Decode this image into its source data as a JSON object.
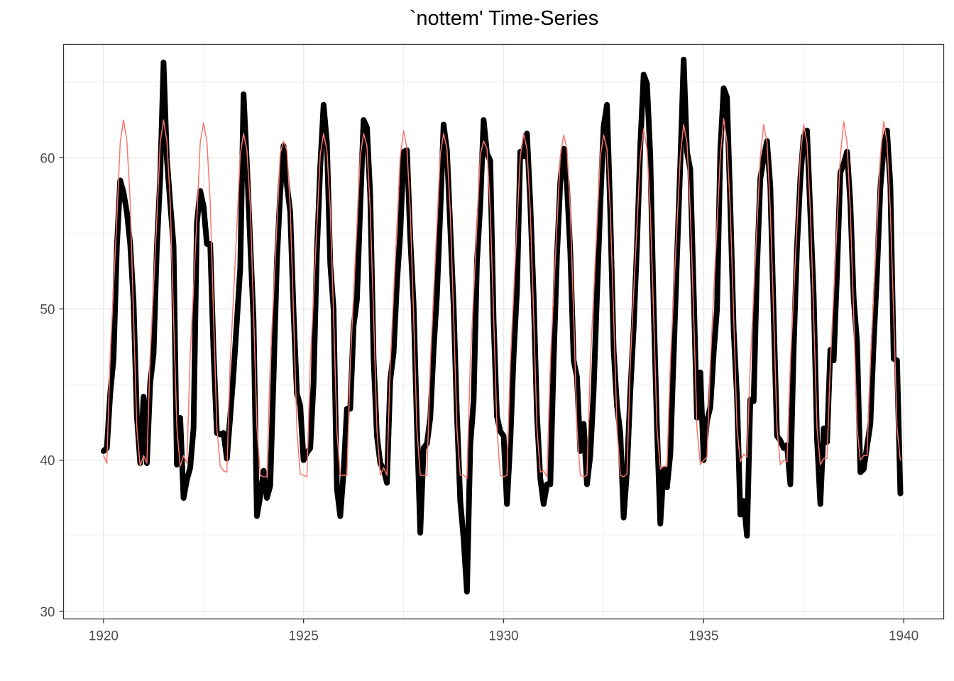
{
  "chart_data": {
    "type": "line",
    "title": "`nottem' Time-Series",
    "xlabel": "",
    "ylabel": "",
    "xlim": [
      1919,
      1941
    ],
    "ylim": [
      29.5,
      67.5
    ],
    "x_ticks": [
      1920,
      1925,
      1930,
      1935,
      1940
    ],
    "x_tick_labels": [
      "1920",
      "1925",
      "1930",
      "1935",
      "1940"
    ],
    "y_ticks": [
      30,
      40,
      50,
      60
    ],
    "y_tick_labels": [
      "30",
      "40",
      "50",
      "60"
    ],
    "grid": true,
    "legend": "none",
    "x_start": 1920.0,
    "x_step": 0.08333333,
    "series": [
      {
        "color": "#000000",
        "style": "thick",
        "values": [
          40.6,
          40.8,
          44.4,
          46.7,
          54.1,
          58.5,
          57.7,
          56.4,
          54.3,
          50.5,
          42.9,
          39.8,
          44.2,
          39.8,
          45.1,
          47.0,
          54.1,
          58.7,
          66.3,
          59.9,
          57.0,
          54.2,
          39.7,
          42.8,
          37.5,
          38.7,
          39.5,
          42.1,
          55.7,
          57.8,
          56.8,
          54.3,
          54.3,
          47.1,
          41.8,
          41.7,
          41.8,
          40.1,
          42.9,
          45.8,
          49.2,
          52.7,
          64.2,
          59.6,
          54.4,
          49.2,
          36.3,
          37.6,
          39.3,
          37.5,
          38.3,
          45.5,
          53.2,
          57.7,
          60.8,
          58.2,
          56.4,
          49.8,
          44.4,
          43.6,
          40.0,
          40.5,
          40.8,
          45.1,
          53.8,
          59.4,
          63.5,
          61.0,
          53.0,
          50.0,
          38.1,
          36.3,
          39.2,
          43.4,
          43.4,
          48.9,
          50.6,
          56.8,
          62.5,
          62.0,
          57.5,
          46.7,
          41.6,
          39.8,
          39.4,
          38.5,
          45.3,
          47.1,
          51.7,
          55.0,
          60.4,
          60.5,
          54.7,
          50.3,
          42.3,
          35.2,
          40.8,
          41.1,
          42.8,
          47.3,
          50.9,
          56.4,
          62.2,
          60.5,
          55.4,
          50.2,
          43.0,
          37.3,
          34.8,
          31.3,
          41.0,
          43.9,
          53.1,
          56.9,
          62.5,
          60.3,
          59.8,
          49.2,
          42.9,
          41.9,
          41.6,
          37.1,
          41.2,
          46.9,
          51.2,
          60.4,
          60.1,
          61.6,
          57.0,
          50.9,
          43.0,
          38.8,
          37.1,
          38.4,
          38.4,
          46.5,
          53.5,
          58.4,
          60.6,
          58.2,
          53.8,
          46.6,
          45.5,
          40.6,
          42.4,
          38.4,
          40.3,
          44.6,
          50.9,
          57.0,
          62.1,
          63.5,
          56.3,
          47.3,
          43.6,
          41.8,
          36.2,
          39.3,
          44.5,
          48.7,
          54.2,
          60.8,
          65.5,
          64.9,
          60.1,
          50.2,
          42.1,
          35.8,
          39.4,
          38.2,
          40.4,
          46.9,
          53.4,
          59.6,
          66.5,
          60.4,
          59.2,
          51.2,
          42.8,
          45.8,
          40.0,
          42.6,
          43.5,
          47.1,
          50.0,
          60.5,
          64.6,
          64.0,
          56.8,
          48.6,
          44.2,
          36.4,
          37.3,
          35.0,
          44.0,
          43.9,
          52.7,
          58.6,
          60.0,
          61.1,
          58.1,
          49.6,
          41.6,
          41.3,
          40.8,
          41.0,
          38.4,
          47.4,
          54.1,
          58.6,
          61.4,
          61.8,
          56.3,
          50.9,
          41.4,
          37.1,
          42.1,
          41.2,
          47.3,
          46.6,
          52.4,
          59.0,
          59.6,
          60.4,
          57.0,
          50.7,
          47.8,
          39.2,
          39.4,
          40.9,
          42.4,
          47.8,
          52.4,
          58.0,
          60.7,
          61.8,
          58.2,
          46.7,
          46.6,
          37.8
        ]
      },
      {
        "color": "#F8766D",
        "style": "thin",
        "values": [
          40.3,
          39.8,
          47.0,
          51.4,
          56.0,
          61.0,
          62.5,
          61.1,
          57.1,
          49.5,
          42.1,
          39.6,
          40.3,
          39.8,
          47.0,
          51.4,
          56.0,
          61.0,
          62.5,
          61.1,
          57.1,
          49.5,
          42.1,
          39.6,
          40.3,
          39.8,
          47.0,
          51.4,
          56.0,
          61.0,
          62.3,
          61.1,
          57.1,
          49.5,
          42.1,
          39.6,
          39.3,
          39.2,
          46.6,
          50.9,
          55.5,
          60.2,
          61.6,
          60.5,
          56.9,
          49.8,
          42.2,
          39.0,
          38.9,
          38.9,
          46.4,
          50.9,
          55.6,
          60.3,
          61.1,
          60.5,
          56.7,
          49.6,
          42.0,
          39.1,
          39.0,
          38.9,
          46.3,
          50.9,
          55.5,
          60.2,
          61.6,
          60.5,
          56.6,
          49.6,
          41.9,
          39.0,
          39.0,
          39.0,
          46.3,
          51.0,
          55.5,
          60.1,
          61.6,
          60.8,
          56.5,
          49.6,
          42.0,
          39.0,
          39.5,
          39.0,
          46.3,
          51.0,
          55.5,
          60.1,
          61.8,
          60.6,
          56.5,
          49.6,
          42.0,
          39.0,
          39.0,
          39.0,
          46.4,
          51.0,
          55.5,
          60.2,
          61.6,
          60.6,
          56.4,
          49.6,
          42.1,
          39.0,
          39.0,
          38.8,
          46.4,
          51.0,
          55.5,
          60.2,
          61.1,
          60.6,
          56.5,
          49.6,
          42.1,
          39.0,
          38.9,
          39.0,
          46.4,
          51.0,
          55.5,
          60.1,
          61.6,
          60.6,
          56.5,
          49.6,
          42.1,
          39.2,
          39.3,
          38.9,
          46.4,
          51.0,
          55.5,
          60.1,
          61.5,
          60.6,
          56.5,
          49.6,
          42.1,
          39.0,
          38.9,
          39.0,
          46.4,
          51.0,
          55.5,
          60.1,
          61.5,
          60.6,
          56.5,
          49.6,
          42.1,
          39.0,
          38.9,
          39.1,
          46.4,
          51.0,
          55.5,
          60.1,
          61.9,
          60.6,
          56.5,
          49.6,
          42.1,
          39.4,
          39.6,
          39.6,
          46.4,
          51.0,
          55.5,
          60.1,
          62.2,
          61.0,
          56.5,
          49.6,
          42.1,
          39.7,
          40.0,
          40.2,
          46.4,
          51.0,
          55.5,
          60.1,
          62.6,
          61.0,
          56.5,
          49.6,
          42.1,
          39.9,
          40.4,
          40.2,
          46.4,
          51.0,
          55.5,
          60.1,
          62.2,
          61.0,
          56.5,
          49.6,
          42.1,
          39.7,
          40.0,
          39.9,
          46.4,
          51.0,
          55.5,
          60.1,
          62.2,
          61.0,
          56.5,
          49.6,
          42.1,
          39.7,
          40.1,
          40.1,
          46.4,
          51.0,
          55.5,
          60.1,
          62.4,
          61.0,
          56.5,
          49.6,
          42.1,
          40.0,
          40.3,
          40.3,
          46.4,
          51.0,
          55.5,
          60.1,
          62.4,
          61.0,
          56.5,
          49.6,
          42.1,
          40.0
        ]
      }
    ]
  }
}
